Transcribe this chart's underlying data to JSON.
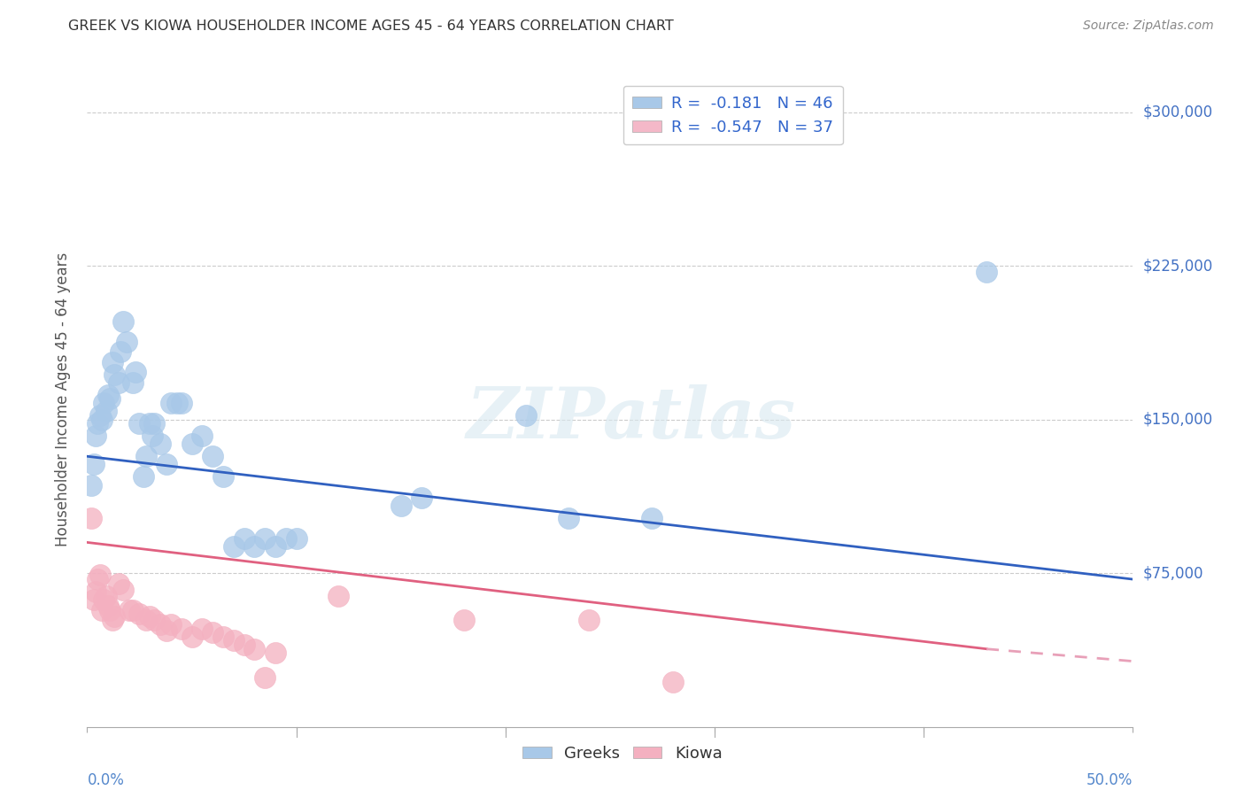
{
  "title": "GREEK VS KIOWA HOUSEHOLDER INCOME AGES 45 - 64 YEARS CORRELATION CHART",
  "source": "Source: ZipAtlas.com",
  "ylabel": "Householder Income Ages 45 - 64 years",
  "xlim": [
    0.0,
    0.5
  ],
  "ylim": [
    0,
    320000
  ],
  "yticks": [
    75000,
    150000,
    225000,
    300000
  ],
  "ytick_labels": [
    "$75,000",
    "$150,000",
    "$225,000",
    "$300,000"
  ],
  "xtick_left": "0.0%",
  "xtick_right": "50.0%",
  "watermark": "ZIPatlas",
  "legend_entries": [
    {
      "label": "R =  -0.181   N = 46",
      "color": "#a8c8e8"
    },
    {
      "label": "R =  -0.547   N = 37",
      "color": "#f4b8c8"
    }
  ],
  "greek_color": "#a8c8e8",
  "kiowa_color": "#f4b0c0",
  "greek_line_color": "#3060c0",
  "kiowa_line_color": "#e06080",
  "kiowa_dash_color": "#e8a0b8",
  "background_color": "#ffffff",
  "greek_scatter": [
    [
      0.002,
      118000
    ],
    [
      0.003,
      128000
    ],
    [
      0.004,
      142000
    ],
    [
      0.005,
      148000
    ],
    [
      0.006,
      152000
    ],
    [
      0.007,
      150000
    ],
    [
      0.008,
      158000
    ],
    [
      0.009,
      154000
    ],
    [
      0.01,
      162000
    ],
    [
      0.011,
      160000
    ],
    [
      0.012,
      178000
    ],
    [
      0.013,
      172000
    ],
    [
      0.015,
      168000
    ],
    [
      0.016,
      183000
    ],
    [
      0.017,
      198000
    ],
    [
      0.019,
      188000
    ],
    [
      0.022,
      168000
    ],
    [
      0.023,
      173000
    ],
    [
      0.025,
      148000
    ],
    [
      0.027,
      122000
    ],
    [
      0.028,
      132000
    ],
    [
      0.03,
      148000
    ],
    [
      0.031,
      142000
    ],
    [
      0.032,
      148000
    ],
    [
      0.035,
      138000
    ],
    [
      0.038,
      128000
    ],
    [
      0.04,
      158000
    ],
    [
      0.043,
      158000
    ],
    [
      0.045,
      158000
    ],
    [
      0.05,
      138000
    ],
    [
      0.055,
      142000
    ],
    [
      0.06,
      132000
    ],
    [
      0.065,
      122000
    ],
    [
      0.07,
      88000
    ],
    [
      0.075,
      92000
    ],
    [
      0.08,
      88000
    ],
    [
      0.085,
      92000
    ],
    [
      0.09,
      88000
    ],
    [
      0.095,
      92000
    ],
    [
      0.1,
      92000
    ],
    [
      0.15,
      108000
    ],
    [
      0.16,
      112000
    ],
    [
      0.21,
      152000
    ],
    [
      0.23,
      102000
    ],
    [
      0.27,
      102000
    ],
    [
      0.43,
      222000
    ]
  ],
  "kiowa_scatter": [
    [
      0.002,
      102000
    ],
    [
      0.003,
      62000
    ],
    [
      0.004,
      66000
    ],
    [
      0.005,
      72000
    ],
    [
      0.006,
      74000
    ],
    [
      0.007,
      57000
    ],
    [
      0.008,
      62000
    ],
    [
      0.009,
      64000
    ],
    [
      0.01,
      59000
    ],
    [
      0.011,
      57000
    ],
    [
      0.012,
      52000
    ],
    [
      0.013,
      54000
    ],
    [
      0.015,
      70000
    ],
    [
      0.017,
      67000
    ],
    [
      0.02,
      57000
    ],
    [
      0.022,
      57000
    ],
    [
      0.025,
      55000
    ],
    [
      0.028,
      52000
    ],
    [
      0.03,
      54000
    ],
    [
      0.032,
      52000
    ],
    [
      0.035,
      50000
    ],
    [
      0.038,
      47000
    ],
    [
      0.04,
      50000
    ],
    [
      0.045,
      48000
    ],
    [
      0.05,
      44000
    ],
    [
      0.055,
      48000
    ],
    [
      0.06,
      46000
    ],
    [
      0.065,
      44000
    ],
    [
      0.07,
      42000
    ],
    [
      0.075,
      40000
    ],
    [
      0.08,
      38000
    ],
    [
      0.085,
      24000
    ],
    [
      0.09,
      36000
    ],
    [
      0.12,
      64000
    ],
    [
      0.18,
      52000
    ],
    [
      0.24,
      52000
    ],
    [
      0.28,
      22000
    ]
  ],
  "greek_trendline": [
    [
      0.0,
      132000
    ],
    [
      0.5,
      72000
    ]
  ],
  "kiowa_trendline_solid": [
    [
      0.0,
      90000
    ],
    [
      0.43,
      38000
    ]
  ],
  "kiowa_trendline_dash": [
    [
      0.43,
      38000
    ],
    [
      0.5,
      32000
    ]
  ]
}
